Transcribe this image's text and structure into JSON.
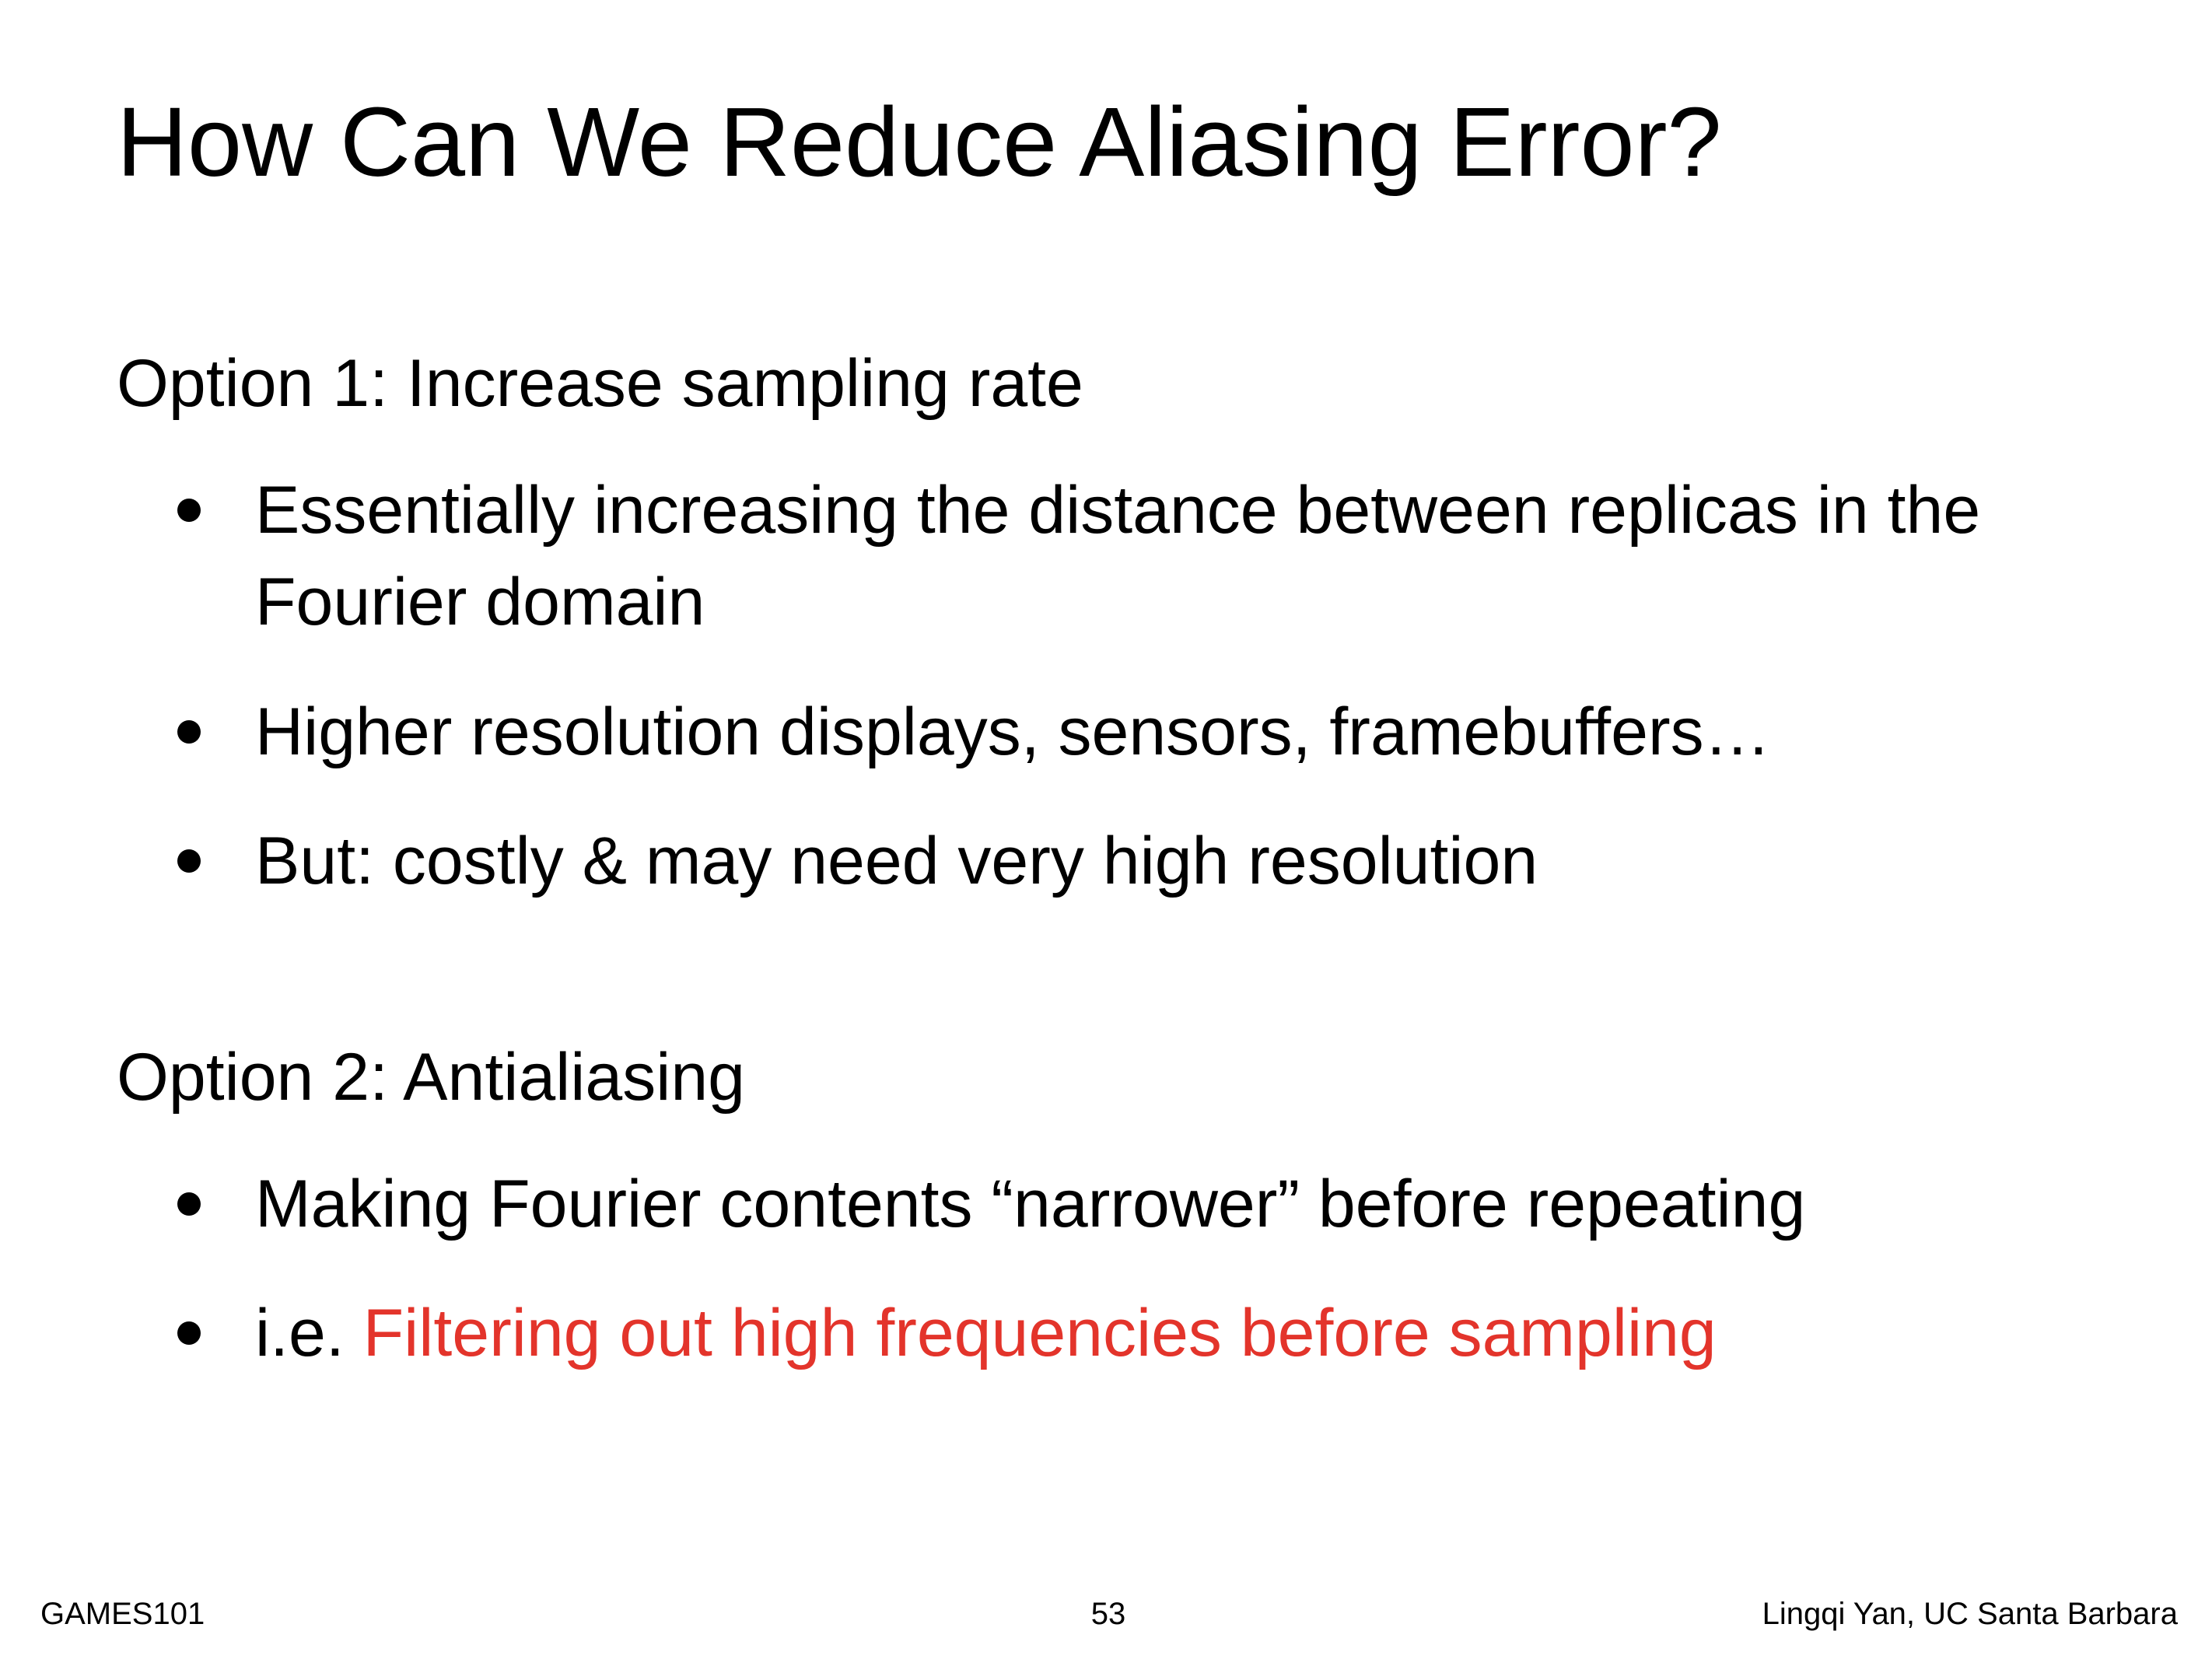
{
  "slide": {
    "title": "How Can We Reduce Aliasing Error?",
    "option1": {
      "heading": "Option 1: Increase sampling rate",
      "bullets": [
        {
          "line1": "Essentially increasing the distance between replicas in the",
          "line2": "Fourier domain"
        },
        {
          "text": "Higher resolution displays, sensors, framebuffers…"
        },
        {
          "text": "But: costly & may need very high resolution"
        }
      ]
    },
    "option2": {
      "heading": "Option 2: Antialiasing",
      "bullets": [
        {
          "text": "Making Fourier contents “narrower” before repeating"
        },
        {
          "prefix": "i.e. ",
          "highlight": "Filtering out high frequencies before sampling"
        }
      ]
    },
    "highlight_color": "#e3342b"
  },
  "footer": {
    "left": "GAMES101",
    "page_number": "53",
    "right": "Lingqi Yan, UC Santa Barbara"
  }
}
